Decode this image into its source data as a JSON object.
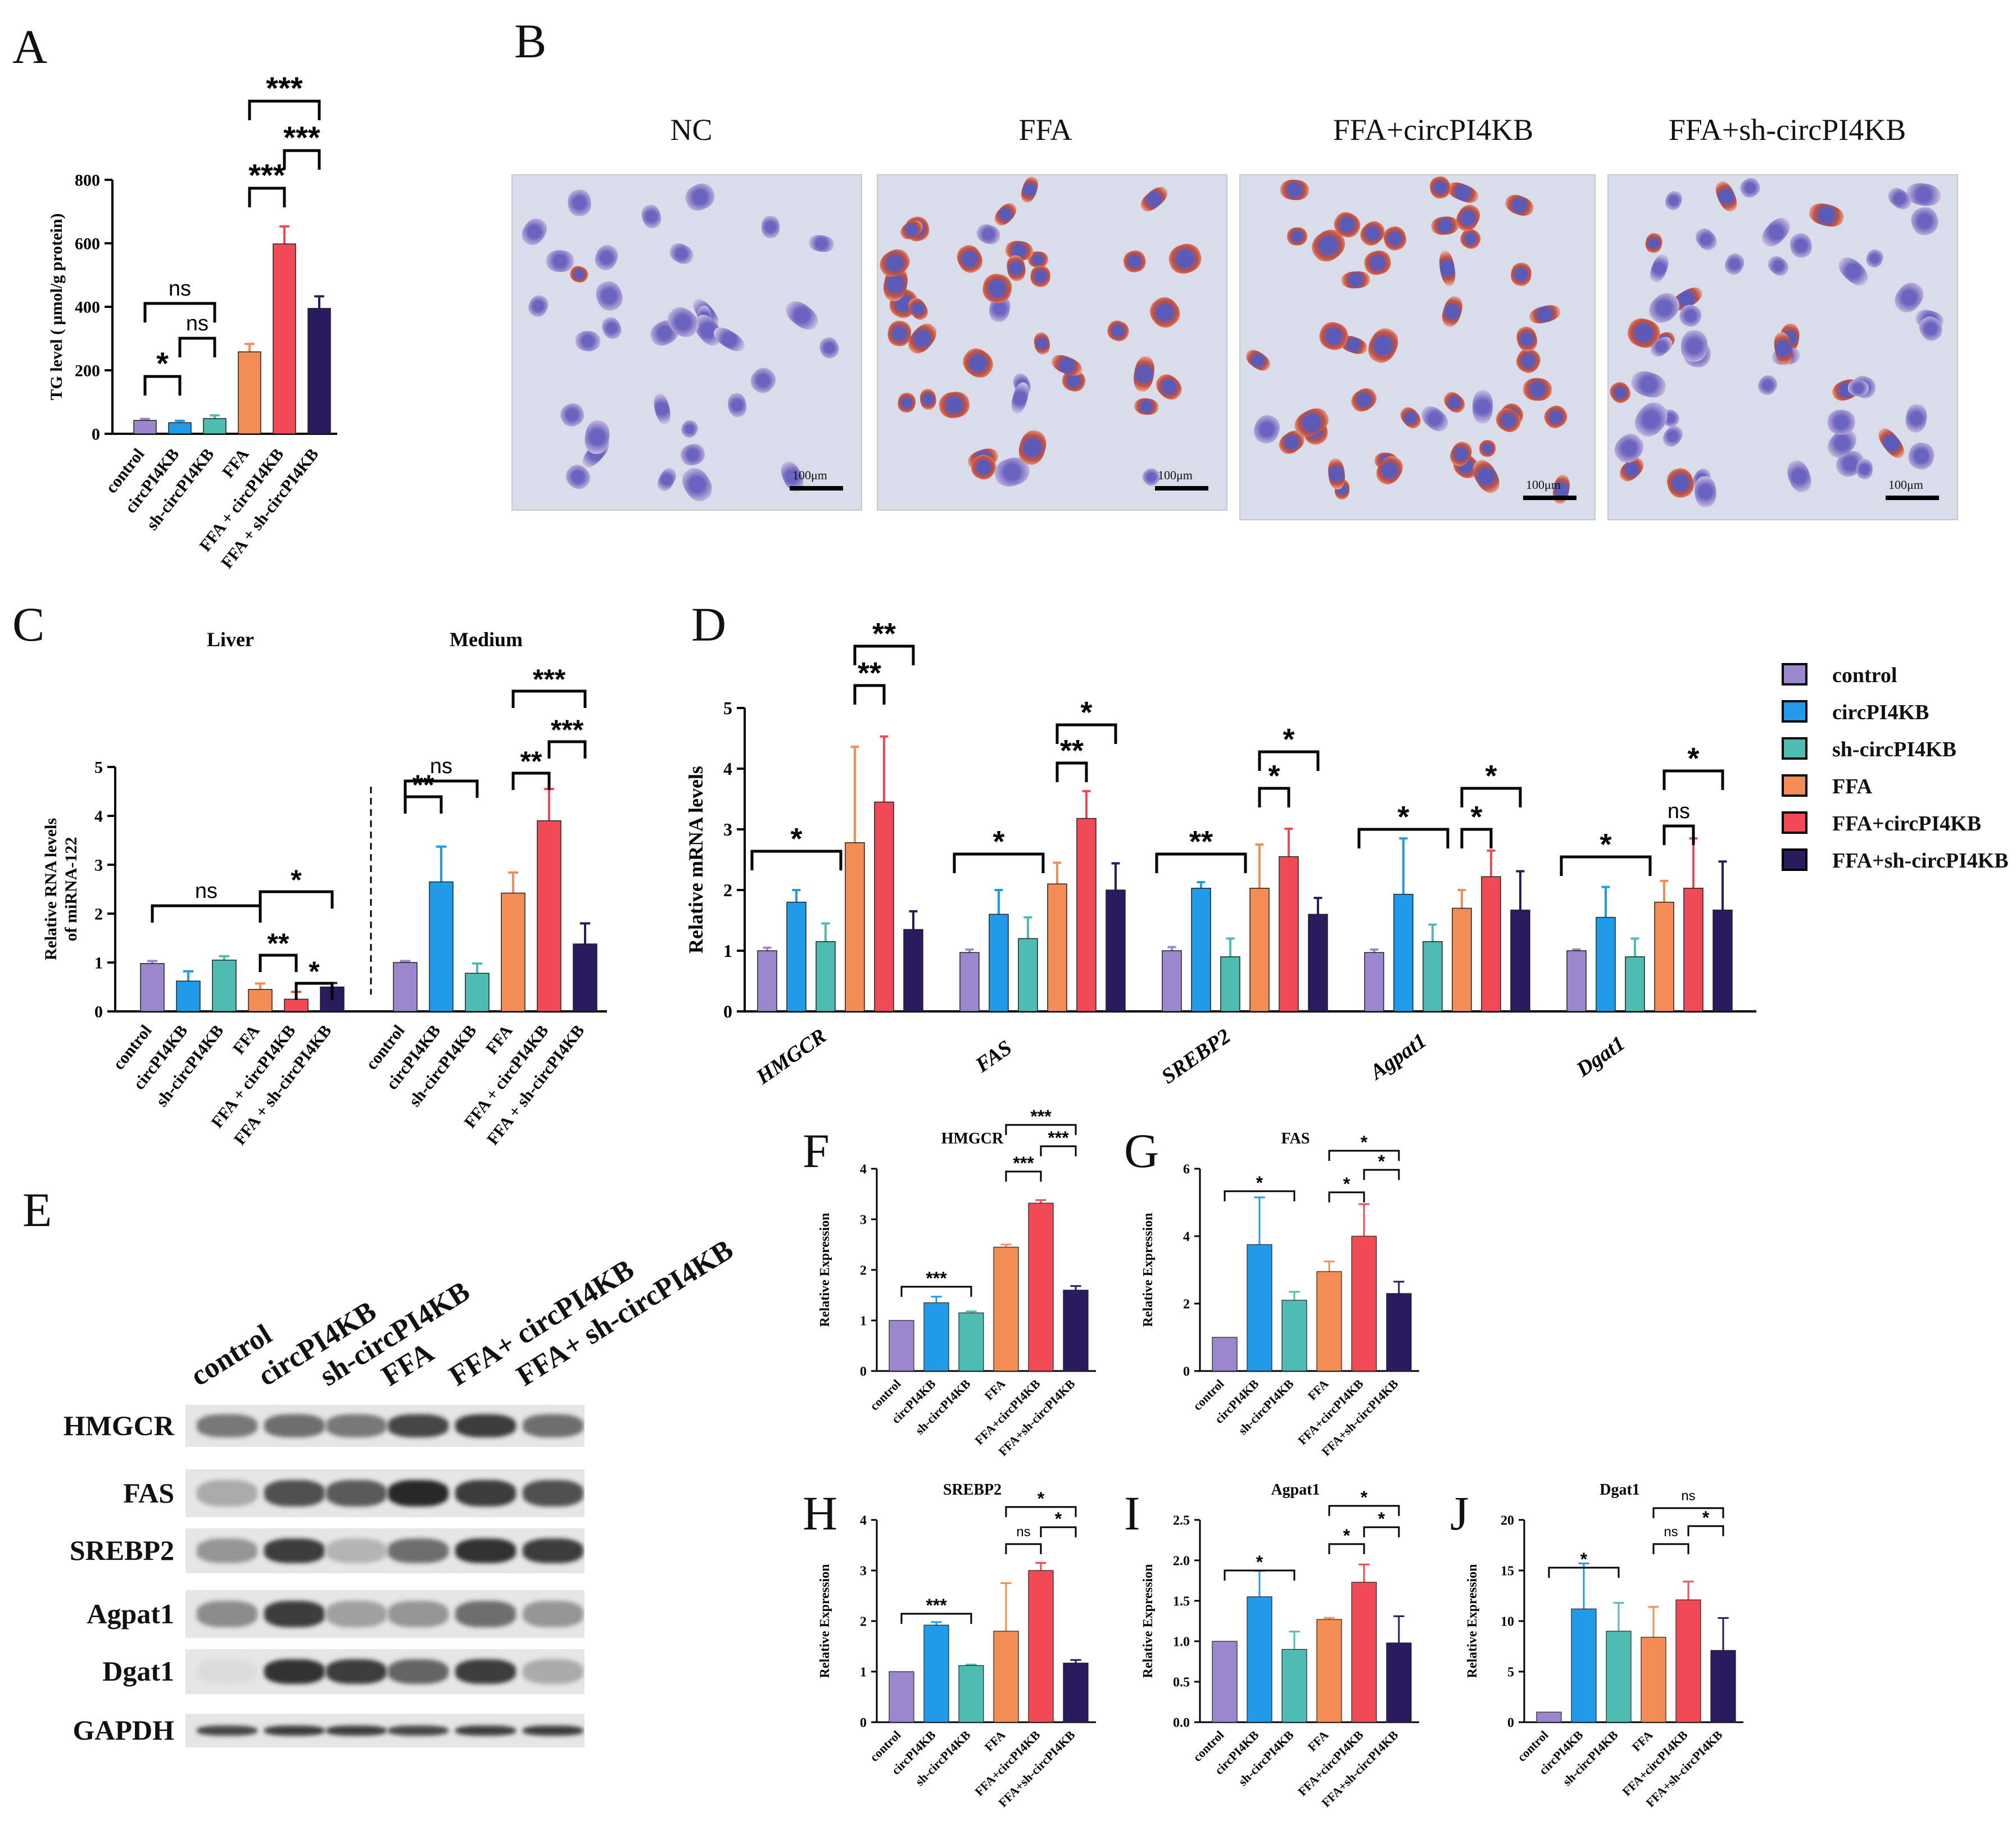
{
  "panel_letters": {
    "A": "A",
    "B": "B",
    "C": "C",
    "D": "D",
    "E": "E",
    "F": "F",
    "G": "G",
    "H": "H",
    "I": "I",
    "J": "J"
  },
  "colors": {
    "control": "#9b87cd",
    "circ": "#1f9bea",
    "sh": "#4fbcb3",
    "ffa": "#f28d55",
    "ffacirc": "#ef4a55",
    "ffash": "#2a1a5e",
    "line": "#000000"
  },
  "micro": {
    "labels": [
      "NC",
      "FFA",
      "FFA+circPI4KB",
      "FFA+sh-circPI4KB"
    ],
    "scale": "100μm"
  },
  "legend": {
    "items": [
      {
        "label": "control",
        "color": "#9b87cd"
      },
      {
        "label": "circPI4KB",
        "color": "#1f9bea"
      },
      {
        "label": "sh-circPI4KB",
        "color": "#4fbcb3"
      },
      {
        "label": "FFA",
        "color": "#f28d55"
      },
      {
        "label": "FFA+circPI4KB",
        "color": "#ef4a55"
      },
      {
        "label": "FFA+sh-circPI4KB",
        "color": "#2a1a5e"
      }
    ]
  },
  "western": {
    "lanes": [
      "control",
      "circPI4KB",
      "sh-circPI4KB",
      "FFA",
      "FFA+ circPI4KB",
      "FFA+ sh-circPI4KB"
    ],
    "proteins": [
      "HMGCR",
      "FAS",
      "SREBP2",
      "Agpat1",
      "Dgat1",
      "GAPDH"
    ]
  },
  "chart_data": [
    {
      "id": "A",
      "type": "bar",
      "title": "",
      "ylabel": "TG level ( μmol/g protein)",
      "categories": [
        "control",
        "circPI4KB",
        "sh-circPI4KB",
        "FFA",
        "FFA + circPI4KB",
        "FFA + sh-circPI4KB"
      ],
      "values": [
        42,
        35,
        48,
        258,
        598,
        395
      ],
      "errors": [
        5,
        6,
        10,
        25,
        55,
        38
      ],
      "ylim": [
        0,
        800
      ],
      "yticks": [
        0,
        200,
        400,
        600,
        800
      ],
      "sig": [
        {
          "from": 0,
          "to": 1,
          "label": "*"
        },
        {
          "from": 1,
          "to": 2,
          "label": "ns"
        },
        {
          "from": 0,
          "to": 2,
          "label": "ns"
        },
        {
          "from": 3,
          "to": 4,
          "label": "***"
        },
        {
          "from": 4,
          "to": 5,
          "label": "***"
        },
        {
          "from": 3,
          "to": 5,
          "label": "***"
        }
      ]
    },
    {
      "id": "C",
      "type": "bar",
      "title": "",
      "ylabel": "Relative RNA levels of miRNA-122",
      "groups": [
        {
          "name": "Liver",
          "categories": [
            "control",
            "circPI4KB",
            "sh-circPI4KB",
            "FFA",
            "FFA + circPI4KB",
            "FFA + sh-circPI4KB"
          ],
          "values": [
            0.98,
            0.62,
            1.05,
            0.45,
            0.25,
            0.5
          ],
          "errors": [
            0.05,
            0.2,
            0.08,
            0.12,
            0.15,
            0.08
          ]
        },
        {
          "name": "Medium",
          "categories": [
            "control",
            "circPI4KB",
            "sh-circPI4KB",
            "FFA",
            "FFA + circPI4KB",
            "FFA + sh-circPI4KB"
          ],
          "values": [
            1.0,
            2.65,
            0.78,
            2.42,
            3.9,
            1.38
          ],
          "errors": [
            0.03,
            0.72,
            0.2,
            0.42,
            0.65,
            0.42
          ]
        }
      ],
      "ylim": [
        0,
        5
      ],
      "yticks": [
        0,
        1,
        2,
        3,
        4,
        5
      ],
      "sig": [
        {
          "group": 0,
          "from": 0,
          "to": 3,
          "label": "ns"
        },
        {
          "group": 0,
          "from": 3,
          "to": 4,
          "label": "**"
        },
        {
          "group": 0,
          "from": 4,
          "to": 5,
          "label": "*"
        },
        {
          "group": 0,
          "from": 3,
          "to": 5,
          "label": "*"
        },
        {
          "group": 1,
          "from": 0,
          "to": 1,
          "label": "**"
        },
        {
          "group": 1,
          "from": 0,
          "to": 2,
          "label": "ns"
        },
        {
          "group": 1,
          "from": 3,
          "to": 4,
          "label": "**"
        },
        {
          "group": 1,
          "from": 4,
          "to": 5,
          "label": "***"
        },
        {
          "group": 1,
          "from": 3,
          "to": 5,
          "label": "***"
        }
      ]
    },
    {
      "id": "D",
      "type": "bar",
      "title": "",
      "ylabel": "Relative mRNA levels",
      "categories": [
        "HMGCR",
        "FAS",
        "SREBP2",
        "Agpat1",
        "Dgat1"
      ],
      "series": [
        {
          "name": "control",
          "values": [
            1.0,
            0.97,
            1.0,
            0.97,
            1.0
          ],
          "errors": [
            0.05,
            0.05,
            0.06,
            0.05,
            0.02
          ]
        },
        {
          "name": "circPI4KB",
          "values": [
            1.8,
            1.6,
            2.03,
            1.93,
            1.55
          ],
          "errors": [
            0.2,
            0.4,
            0.1,
            0.92,
            0.5
          ]
        },
        {
          "name": "sh-circPI4KB",
          "values": [
            1.15,
            1.2,
            0.9,
            1.15,
            0.9
          ],
          "errors": [
            0.3,
            0.35,
            0.3,
            0.28,
            0.3
          ]
        },
        {
          "name": "FFA",
          "values": [
            2.78,
            2.1,
            2.03,
            1.7,
            1.8
          ],
          "errors": [
            1.58,
            0.35,
            0.72,
            0.3,
            0.35
          ]
        },
        {
          "name": "FFA+circPI4KB",
          "values": [
            3.45,
            3.18,
            2.55,
            2.22,
            2.03
          ],
          "errors": [
            1.08,
            0.45,
            0.46,
            0.43,
            0.82
          ]
        },
        {
          "name": "FFA+sh-circPI4KB",
          "values": [
            1.35,
            2.0,
            1.6,
            1.67,
            1.67
          ],
          "errors": [
            0.3,
            0.44,
            0.27,
            0.64,
            0.8
          ]
        }
      ],
      "ylim": [
        0,
        5
      ],
      "yticks": [
        0,
        1,
        2,
        3,
        4,
        5
      ],
      "sig": [
        {
          "cat": 0,
          "from": 0,
          "to": 2,
          "label": "*"
        },
        {
          "cat": 0,
          "from": 3,
          "to": 4,
          "label": "**"
        },
        {
          "cat": 0,
          "from": 3,
          "to": 5,
          "label": "**"
        },
        {
          "cat": 1,
          "from": 0,
          "to": 2,
          "label": "*"
        },
        {
          "cat": 1,
          "from": 3,
          "to": 4,
          "label": "**"
        },
        {
          "cat": 1,
          "from": 3,
          "to": 5,
          "label": "*"
        },
        {
          "cat": 2,
          "from": 0,
          "to": 2,
          "label": "**"
        },
        {
          "cat": 2,
          "from": 3,
          "to": 4,
          "label": "*"
        },
        {
          "cat": 2,
          "from": 3,
          "to": 5,
          "label": "*"
        },
        {
          "cat": 3,
          "from": 0,
          "to": 2,
          "label": "*"
        },
        {
          "cat": 3,
          "from": 3,
          "to": 4,
          "label": "*"
        },
        {
          "cat": 3,
          "from": 3,
          "to": 5,
          "label": "*"
        },
        {
          "cat": 4,
          "from": 0,
          "to": 2,
          "label": "*"
        },
        {
          "cat": 4,
          "from": 3,
          "to": 4,
          "label": "ns"
        },
        {
          "cat": 4,
          "from": 3,
          "to": 5,
          "label": "*"
        }
      ]
    },
    {
      "id": "F",
      "type": "bar",
      "title": "HMGCR",
      "ylabel": "Relative Expression",
      "categories": [
        "control",
        "circPI4KB",
        "sh-circPI4KB",
        "FFA",
        "FFA+circPI4KB",
        "FFA+sh-circPI4KB"
      ],
      "values": [
        1.0,
        1.35,
        1.15,
        2.45,
        3.32,
        1.6
      ],
      "errors": [
        0,
        0.12,
        0.03,
        0.05,
        0.06,
        0.08
      ],
      "ylim": [
        0,
        4
      ],
      "yticks": [
        0,
        1,
        2,
        3,
        4
      ],
      "sig": [
        {
          "from": 0,
          "to": 2,
          "label": "***"
        },
        {
          "from": 3,
          "to": 4,
          "label": "***"
        },
        {
          "from": 4,
          "to": 5,
          "label": "***"
        },
        {
          "from": 3,
          "to": 5,
          "label": "***"
        }
      ]
    },
    {
      "id": "G",
      "type": "bar",
      "title": "FAS",
      "ylabel": "Relative Expression",
      "categories": [
        "control",
        "circPI4KB",
        "sh-circPI4KB",
        "FFA",
        "FFA+circPI4KB",
        "FFA+sh-circPI4KB"
      ],
      "values": [
        1.0,
        3.75,
        2.1,
        2.95,
        4.0,
        2.3
      ],
      "errors": [
        0,
        1.4,
        0.25,
        0.3,
        0.95,
        0.35
      ],
      "ylim": [
        0,
        6
      ],
      "yticks": [
        0,
        2,
        4,
        6
      ],
      "sig": [
        {
          "from": 0,
          "to": 2,
          "label": "*"
        },
        {
          "from": 3,
          "to": 4,
          "label": "*"
        },
        {
          "from": 4,
          "to": 5,
          "label": "*"
        },
        {
          "from": 3,
          "to": 5,
          "label": "*"
        }
      ]
    },
    {
      "id": "H",
      "type": "bar",
      "title": "SREBP2",
      "ylabel": "Relative Expression",
      "categories": [
        "control",
        "circPI4KB",
        "sh-circPI4KB",
        "FFA",
        "FFA+circPI4KB",
        "FFA+sh-circPI4KB"
      ],
      "values": [
        1.0,
        1.92,
        1.12,
        1.8,
        3.0,
        1.17
      ],
      "errors": [
        0,
        0.06,
        0.02,
        0.95,
        0.15,
        0.06
      ],
      "ylim": [
        0,
        4
      ],
      "yticks": [
        0,
        1,
        2,
        3,
        4
      ],
      "sig": [
        {
          "from": 0,
          "to": 2,
          "label": "***"
        },
        {
          "from": 3,
          "to": 4,
          "label": "ns"
        },
        {
          "from": 4,
          "to": 5,
          "label": "*"
        },
        {
          "from": 3,
          "to": 5,
          "label": "*"
        }
      ]
    },
    {
      "id": "I",
      "type": "bar",
      "title": "Agpat1",
      "ylabel": "Relative Expression",
      "categories": [
        "control",
        "circPI4KB",
        "sh-circPI4KB",
        "FFA",
        "FFA+circPI4KB",
        "FFA+sh-circPI4KB"
      ],
      "values": [
        1.0,
        1.55,
        0.9,
        1.27,
        1.73,
        0.98
      ],
      "errors": [
        0,
        0.32,
        0.22,
        0.02,
        0.22,
        0.33
      ],
      "ylim": [
        0,
        2.5
      ],
      "yticks": [
        0,
        0.5,
        1.0,
        1.5,
        2.0,
        2.5
      ],
      "sig": [
        {
          "from": 0,
          "to": 2,
          "label": "*"
        },
        {
          "from": 3,
          "to": 4,
          "label": "*"
        },
        {
          "from": 4,
          "to": 5,
          "label": "*"
        },
        {
          "from": 3,
          "to": 5,
          "label": "*"
        }
      ]
    },
    {
      "id": "J",
      "type": "bar",
      "title": "Dgat1",
      "ylabel": "Relative Expression",
      "categories": [
        "control",
        "circPI4KB",
        "sh-circPI4KB",
        "FFA",
        "FFA+circPI4KB",
        "FFA+sh-circPI4KB"
      ],
      "values": [
        1.0,
        11.2,
        9.0,
        8.4,
        12.1,
        7.1
      ],
      "errors": [
        0,
        4.5,
        2.8,
        3.0,
        1.8,
        3.2
      ],
      "ylim": [
        0,
        20
      ],
      "yticks": [
        0,
        5,
        10,
        15,
        20
      ],
      "sig": [
        {
          "from": 0,
          "to": 2,
          "label": "*"
        },
        {
          "from": 3,
          "to": 4,
          "label": "ns"
        },
        {
          "from": 4,
          "to": 5,
          "label": "*"
        },
        {
          "from": 3,
          "to": 5,
          "label": "ns"
        }
      ]
    }
  ]
}
